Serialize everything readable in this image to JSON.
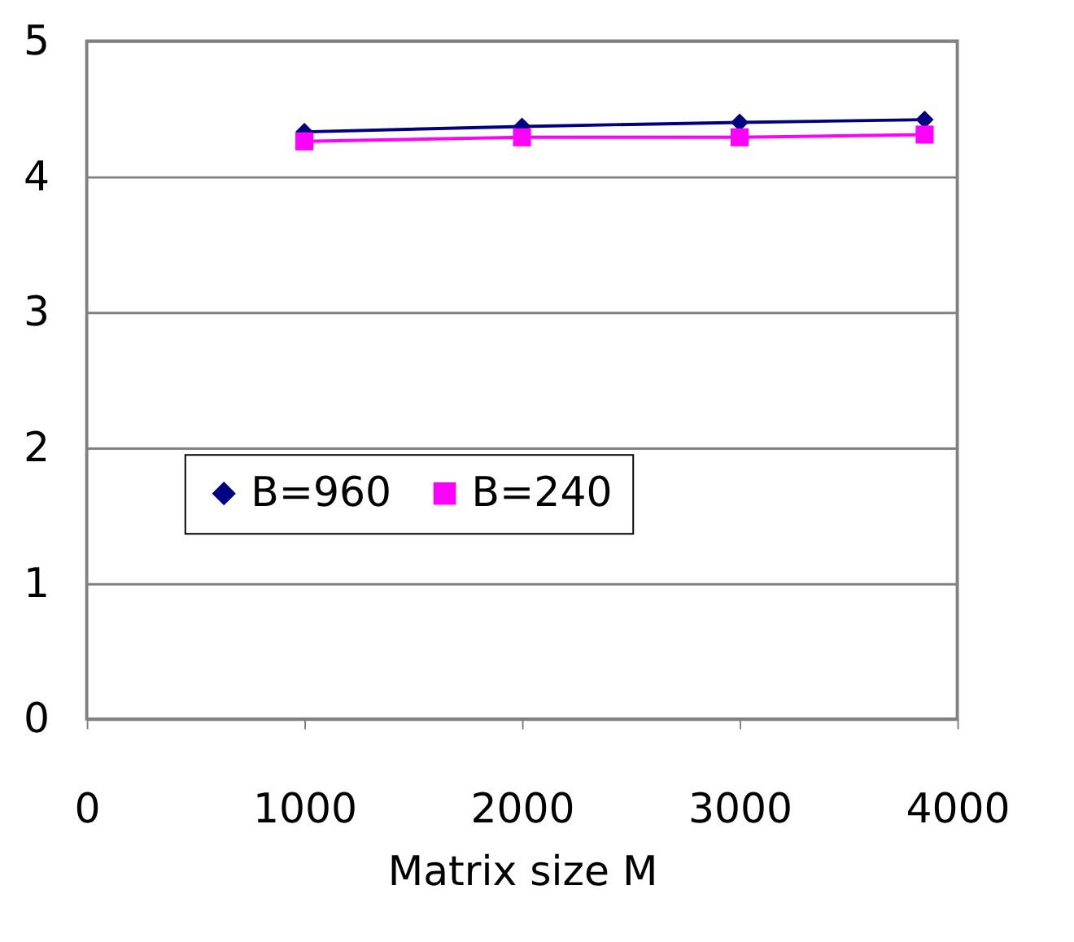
{
  "chart_data": {
    "type": "line",
    "xlabel": "Matrix size M",
    "x": [
      1000,
      2000,
      3000,
      3850
    ],
    "series": [
      {
        "name": "B=960",
        "color": "#000080",
        "marker": "diamond",
        "values": [
          4.33,
          4.37,
          4.4,
          4.42
        ]
      },
      {
        "name": "B=240",
        "color": "#ff00ff",
        "marker": "square",
        "values": [
          4.26,
          4.29,
          4.29,
          4.31
        ]
      }
    ],
    "xlim": [
      0,
      4000
    ],
    "xticks": [
      0,
      1000,
      2000,
      3000,
      4000
    ],
    "ylim": [
      0,
      5
    ],
    "yticks": [
      0,
      1,
      2,
      3,
      4,
      5
    ],
    "grid": "y",
    "legend": "left",
    "line_style": "solid"
  }
}
